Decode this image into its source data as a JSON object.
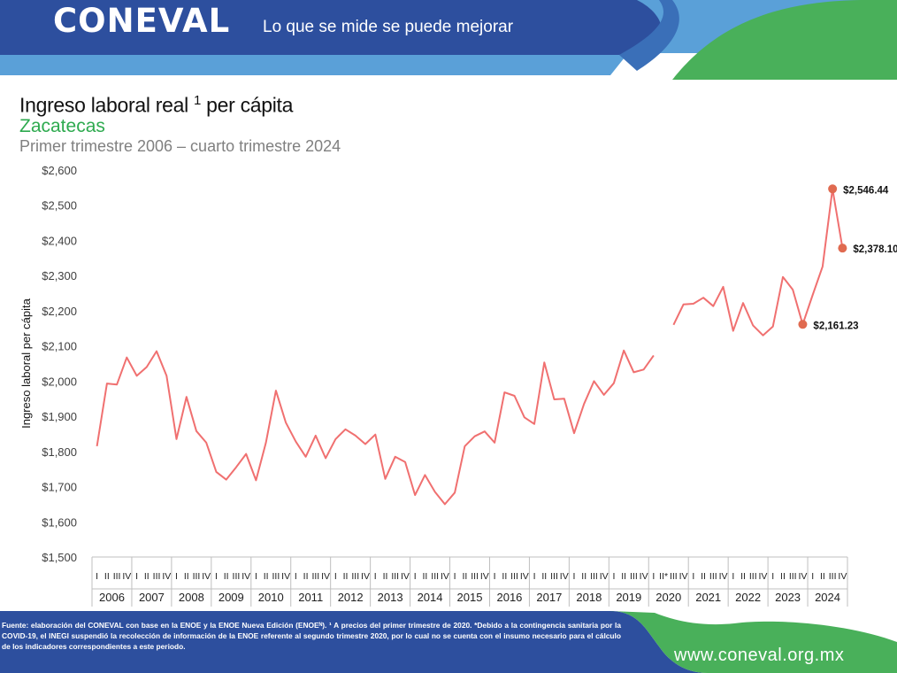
{
  "header": {
    "logo": "CONEVAL",
    "slogan": "Lo que se mide se puede mejorar"
  },
  "title": {
    "main": "Ingreso laboral real",
    "sup": "1",
    "main_tail": " per cápita",
    "state": "Zacatecas",
    "period": "Primer trimestre 2006 – cuarto trimestre 2024"
  },
  "chart_data": {
    "type": "line",
    "ylabel": "Ingreso laboral per cápita",
    "ylim": [
      1500,
      2600
    ],
    "yticks": [
      "$1,500",
      "$1,600",
      "$1,700",
      "$1,800",
      "$1,900",
      "$2,000",
      "$2,100",
      "$2,200",
      "$2,300",
      "$2,400",
      "$2,500",
      "$2,600"
    ],
    "years": [
      "2006",
      "2007",
      "2008",
      "2009",
      "2010",
      "2011",
      "2012",
      "2013",
      "2014",
      "2015",
      "2016",
      "2017",
      "2018",
      "2019",
      "2020",
      "2021",
      "2022",
      "2023",
      "2024"
    ],
    "quarter_labels": [
      "I",
      "II",
      "III",
      "IV"
    ],
    "quarter_labels_2020": [
      "I",
      "II*",
      "III",
      "IV"
    ],
    "series": [
      {
        "color": "#f07070",
        "values": [
          1815,
          1993,
          1990,
          2067,
          2015,
          2040,
          2085,
          2015,
          1835,
          1955,
          1858,
          1825,
          1742,
          1720,
          1755,
          1793,
          1718,
          1825,
          1973,
          1882,
          1828,
          1785,
          1845,
          1781,
          1835,
          1863,
          1845,
          1821,
          1848,
          1722,
          1785,
          1770,
          1676,
          1733,
          1685,
          1650,
          1683,
          1815,
          1843,
          1857,
          1825,
          1968,
          1958,
          1897,
          1878,
          2053,
          1948,
          1950,
          1852,
          1935,
          2000,
          1961,
          1994,
          2087,
          2025,
          2033,
          2073,
          null,
          2160,
          2218,
          2220,
          2237,
          2213,
          2268,
          2143,
          2222,
          2158,
          2130,
          2155,
          2296,
          2260,
          2161.23,
          2245,
          2326,
          2546.44,
          2378.1
        ]
      }
    ],
    "highlights": [
      {
        "index": 71,
        "label": "$2,161.23"
      },
      {
        "index": 74,
        "label": "$2,546.44"
      },
      {
        "index": 75,
        "label": "$2,378.10"
      }
    ]
  },
  "footer": {
    "source": "Fuente: elaboración del CONEVAL con base en la ENOE y la ENOE Nueva Edición (ENOEᴺ). ¹ A precios del primer trimestre de 2020. *Debido a la contingencia sanitaria por la COVID-19, el INEGI suspendió la recolección de información de la ENOE referente al segundo trimestre 2020, por lo cual no se cuenta con el insumo necesario para el cálculo de los indicadores correspondientes a este periodo.",
    "url": "www.coneval.org.mx"
  },
  "colors": {
    "header_blue": "#2d4f9e",
    "header_light_blue": "#5aa0d8",
    "header_green": "#49b05a",
    "line": "#f07070",
    "marker": "#e06a50",
    "state": "#2eaa4f"
  }
}
